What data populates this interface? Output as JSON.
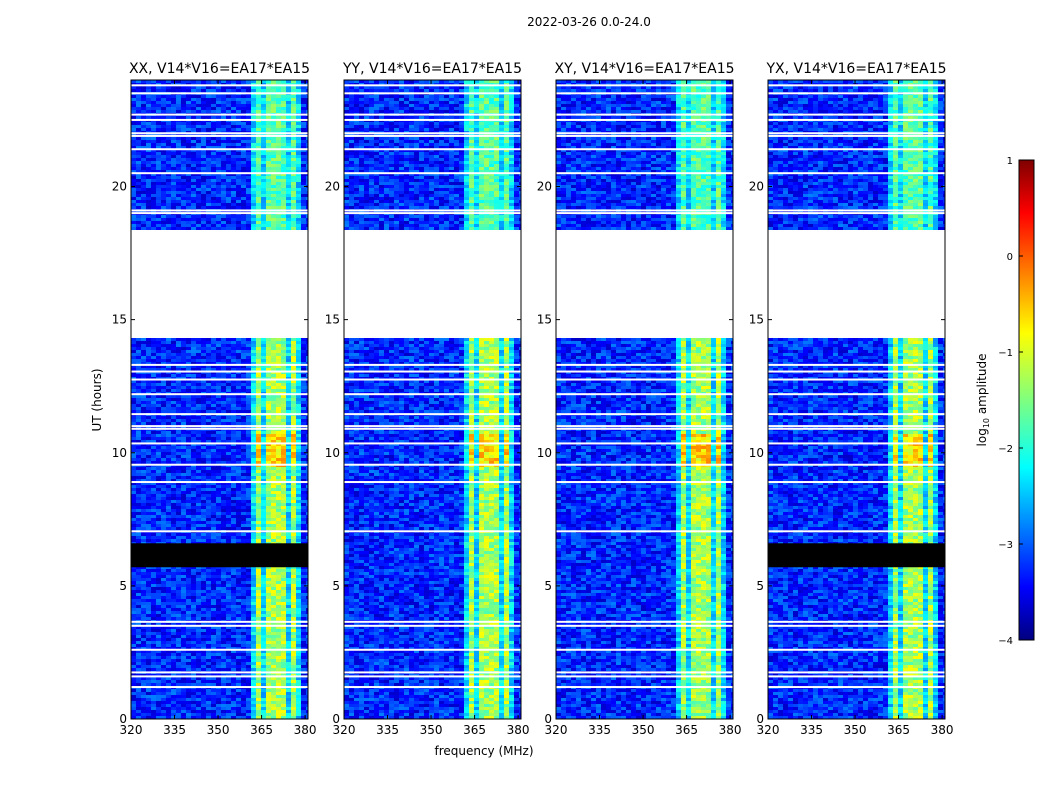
{
  "figure_title": "2022-03-26 0.0-24.0",
  "chart_data": {
    "type": "heatmap",
    "description_axes": {
      "xlabel": "frequency (MHz)",
      "ylabel": "UT (hours)",
      "xlim": [
        320,
        381
      ],
      "ylim": [
        0,
        24
      ],
      "xticks": [
        320,
        335,
        350,
        365,
        380
      ],
      "xtick_labels": [
        "320",
        "335",
        "350",
        "365",
        "380"
      ],
      "yticks": [
        0,
        5,
        10,
        15,
        20
      ],
      "ytick_labels": [
        "0",
        "5",
        "10",
        "15",
        "20"
      ]
    },
    "panels": [
      {
        "title": "XX, V14*V16=EA17*EA15",
        "pol": "XX",
        "show_ylabel": true
      },
      {
        "title": "YY, V14*V16=EA17*EA15",
        "pol": "YY",
        "show_xlabel": true
      },
      {
        "title": "XY, V14*V16=EA17*EA15",
        "pol": "XY"
      },
      {
        "title": "YX, V14*V16=EA17*EA15",
        "pol": "YX"
      }
    ],
    "colorbar": {
      "label": "log10 amplitude",
      "label_base": "log",
      "label_sub": "10",
      "label_rest": " amplitude",
      "colormap": "jet",
      "vmin": -4,
      "vmax": 1,
      "ticks": [
        1,
        0,
        -1,
        -2,
        -3,
        -4
      ],
      "tick_labels": [
        "1",
        "0",
        "−1",
        "−2",
        "−3",
        "−4"
      ]
    },
    "data_gap_hours": [
      18.4,
      14.4
    ],
    "flagged_black_hours": [
      5.7,
      6.6
    ],
    "rfi_band_mhz": [
      362,
      378
    ],
    "background_log10_amplitude": -3.2,
    "rfi_log10_amplitude": -1.4
  }
}
